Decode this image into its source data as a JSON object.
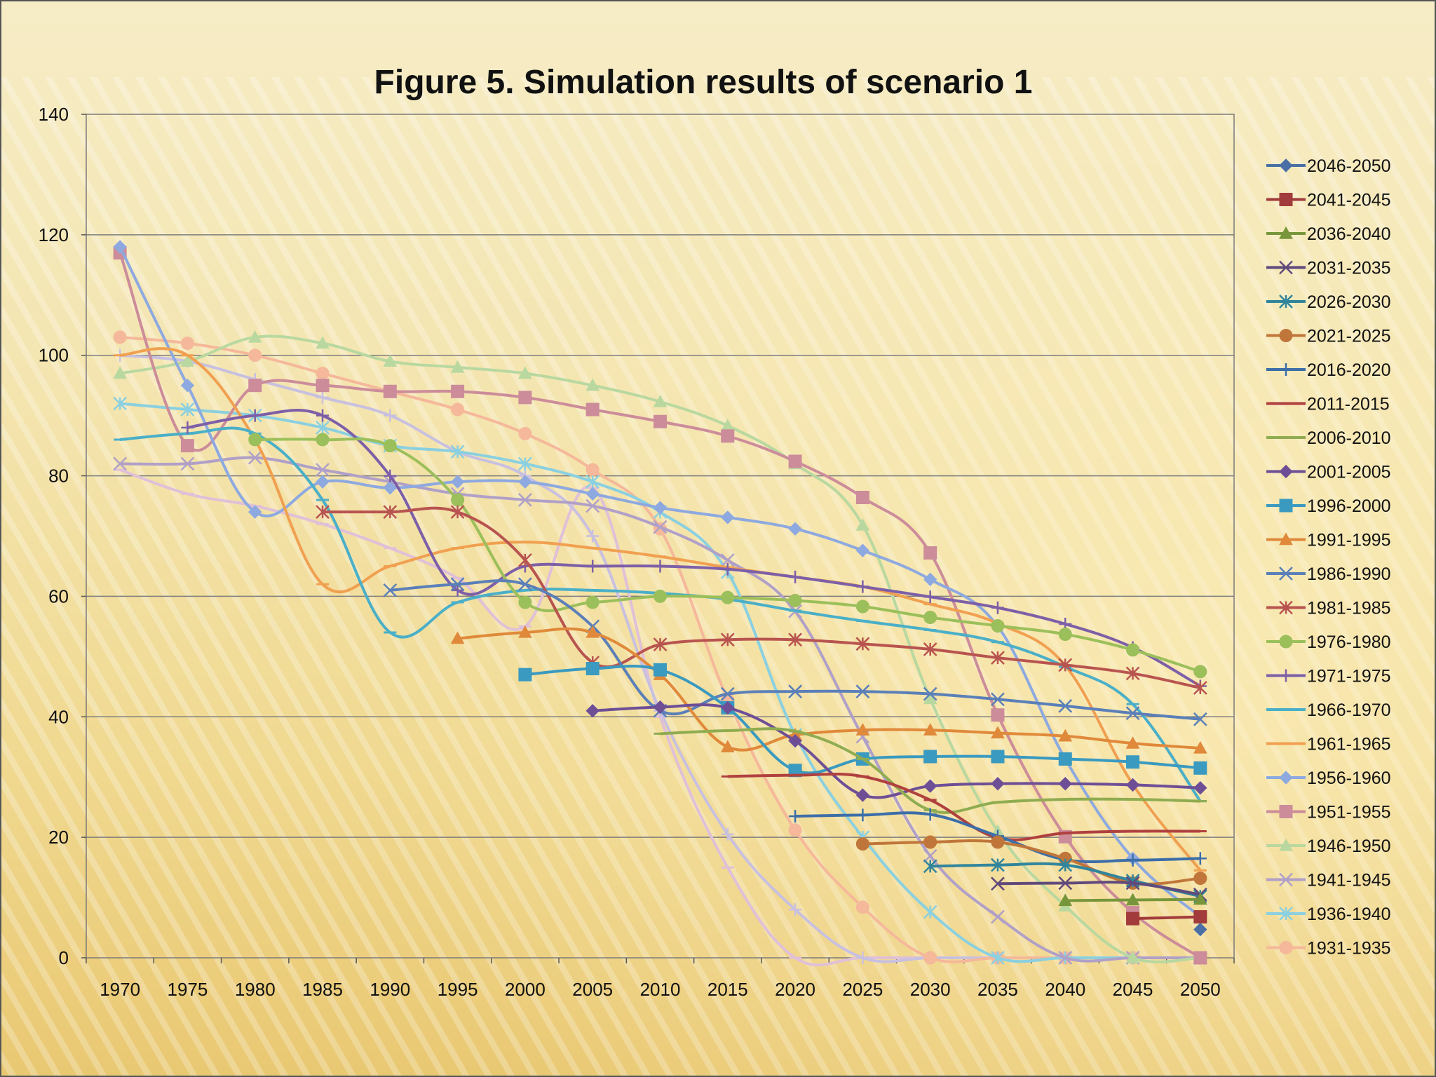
{
  "chart_data": {
    "type": "line",
    "title": "Figure 5. Simulation results of scenario 1",
    "xlabel": "",
    "ylabel": "",
    "ylim": [
      0,
      140
    ],
    "yticks": [
      0,
      20,
      40,
      60,
      80,
      100,
      120,
      140
    ],
    "grid": true,
    "legend_position": "right",
    "categories": [
      "1970",
      "1975",
      "1980",
      "1985",
      "1990",
      "1995",
      "2000",
      "2005",
      "2010",
      "2015",
      "2020",
      "2025",
      "2030",
      "2035",
      "2040",
      "2045",
      "2050"
    ],
    "series": [
      {
        "name": "2046-2050",
        "color": "#4a6fa5",
        "marker": "diamond",
        "values": [
          null,
          null,
          null,
          null,
          null,
          null,
          null,
          null,
          null,
          null,
          null,
          null,
          null,
          null,
          null,
          null,
          4.7
        ]
      },
      {
        "name": "2041-2045",
        "color": "#a23b3b",
        "marker": "square",
        "values": [
          null,
          null,
          null,
          null,
          null,
          null,
          null,
          null,
          null,
          null,
          null,
          null,
          null,
          null,
          null,
          6.5,
          6.8
        ]
      },
      {
        "name": "2036-2040",
        "color": "#77963b",
        "marker": "triangle",
        "values": [
          null,
          null,
          null,
          null,
          null,
          null,
          null,
          null,
          null,
          null,
          null,
          null,
          null,
          null,
          9.5,
          9.6,
          9.7
        ]
      },
      {
        "name": "2031-2035",
        "color": "#604a7b",
        "marker": "x",
        "values": [
          null,
          null,
          null,
          null,
          null,
          null,
          null,
          null,
          null,
          null,
          null,
          null,
          null,
          12.3,
          12.4,
          12.4,
          10.5
        ]
      },
      {
        "name": "2026-2030",
        "color": "#31859c",
        "marker": "star",
        "values": [
          null,
          null,
          null,
          null,
          null,
          null,
          null,
          null,
          null,
          null,
          null,
          null,
          15.2,
          15.4,
          15.4,
          12.8,
          10.2
        ]
      },
      {
        "name": "2021-2025",
        "color": "#c0763a",
        "marker": "circle",
        "values": [
          null,
          null,
          null,
          null,
          null,
          null,
          null,
          null,
          null,
          null,
          null,
          18.9,
          19.2,
          19.2,
          16.5,
          12.4,
          13.2
        ]
      },
      {
        "name": "2016-2020",
        "color": "#3c6ea8",
        "marker": "plus",
        "values": [
          null,
          null,
          null,
          null,
          null,
          null,
          null,
          null,
          null,
          null,
          23.5,
          23.7,
          23.8,
          20.2,
          16.3,
          16.2,
          16.5
        ]
      },
      {
        "name": "2011-2015",
        "color": "#b0403f",
        "marker": "dash",
        "values": [
          null,
          null,
          null,
          null,
          null,
          null,
          null,
          null,
          null,
          30.1,
          30.3,
          30.1,
          26.2,
          19.9,
          20.7,
          21.0,
          21.0
        ]
      },
      {
        "name": "2006-2010",
        "color": "#8fac50",
        "marker": "dash",
        "values": [
          null,
          null,
          null,
          null,
          null,
          null,
          null,
          null,
          37.2,
          37.7,
          37.6,
          33.0,
          24.5,
          25.8,
          26.3,
          26.3,
          26.0
        ]
      },
      {
        "name": "2001-2005",
        "color": "#6e4f96",
        "marker": "diamond",
        "values": [
          null,
          null,
          null,
          null,
          null,
          null,
          null,
          41.0,
          41.6,
          41.5,
          36.0,
          27.0,
          28.5,
          28.9,
          28.9,
          28.7,
          28.2
        ]
      },
      {
        "name": "1996-2000",
        "color": "#3a9ac0",
        "marker": "square",
        "values": [
          null,
          null,
          null,
          null,
          null,
          null,
          47.0,
          48.0,
          47.8,
          41.5,
          31.1,
          33.0,
          33.4,
          33.4,
          33.0,
          32.5,
          31.5
        ]
      },
      {
        "name": "1991-1995",
        "color": "#e0893a",
        "marker": "triangle",
        "values": [
          null,
          null,
          null,
          null,
          null,
          53.0,
          54.0,
          54.0,
          47.0,
          35.0,
          37.0,
          37.8,
          37.8,
          37.3,
          36.8,
          35.6,
          34.8
        ]
      },
      {
        "name": "1986-1990",
        "color": "#5b7fb8",
        "marker": "x",
        "values": [
          null,
          null,
          null,
          null,
          61.0,
          62.0,
          62.0,
          55.0,
          41.0,
          43.8,
          44.2,
          44.2,
          43.8,
          42.9,
          41.8,
          40.6,
          39.6
        ]
      },
      {
        "name": "1981-1985",
        "color": "#b85450",
        "marker": "star",
        "values": [
          null,
          null,
          null,
          74.0,
          74.0,
          74.0,
          66.0,
          49.0,
          52.0,
          52.8,
          52.8,
          52.1,
          51.2,
          49.8,
          48.6,
          47.2,
          44.8
        ]
      },
      {
        "name": "1976-1980",
        "color": "#9bbf5a",
        "marker": "circle",
        "values": [
          null,
          null,
          86.0,
          86.0,
          85.0,
          76.0,
          59.0,
          59.0,
          60.0,
          59.8,
          59.3,
          58.3,
          56.5,
          55.1,
          53.7,
          51.1,
          47.5
        ]
      },
      {
        "name": "1971-1975",
        "color": "#7d5fa8",
        "marker": "plus",
        "values": [
          null,
          88.0,
          90.0,
          90.0,
          80.0,
          61.0,
          65.0,
          65.0,
          65.0,
          64.5,
          63.2,
          61.6,
          59.9,
          58.1,
          55.4,
          51.5,
          45.1
        ]
      },
      {
        "name": "1966-1970",
        "color": "#4aafc8",
        "marker": "dash",
        "values": [
          86.0,
          87.0,
          87.0,
          76.0,
          54.0,
          59.0,
          61.0,
          61.0,
          60.5,
          59.5,
          57.6,
          55.9,
          54.4,
          52.4,
          48.3,
          42.1,
          26.0
        ]
      },
      {
        "name": "1961-1965",
        "color": "#f0a050",
        "marker": "dash",
        "values": [
          100.0,
          100.0,
          86.0,
          62.0,
          65.0,
          68.0,
          69.0,
          68.0,
          66.6,
          64.8,
          63.2,
          61.6,
          58.7,
          55.5,
          48.5,
          28.8,
          14.5
        ]
      },
      {
        "name": "1956-1960",
        "color": "#8da9e0",
        "marker": "diamond",
        "values": [
          118.0,
          95.0,
          74.0,
          79.0,
          78.0,
          79.0,
          79.0,
          77.0,
          74.7,
          73.1,
          71.2,
          67.6,
          62.8,
          55.0,
          33.0,
          16.5,
          6.8
        ]
      },
      {
        "name": "1951-1955",
        "color": "#cc8c9a",
        "marker": "square",
        "values": [
          117.0,
          85.0,
          95.0,
          95.0,
          94.0,
          94.0,
          93.0,
          91.0,
          89.0,
          86.6,
          82.4,
          76.4,
          67.2,
          40.3,
          20.1,
          7.5,
          0.0
        ]
      },
      {
        "name": "1946-1950",
        "color": "#b8d8a0",
        "marker": "triangle",
        "values": [
          97.0,
          99.0,
          103.0,
          102.0,
          99.0,
          98.0,
          97.0,
          95.0,
          92.3,
          88.3,
          82.0,
          71.8,
          43.0,
          21.0,
          8.6,
          0.0,
          0.0
        ]
      },
      {
        "name": "1941-1945",
        "color": "#b0a0c8",
        "marker": "x",
        "values": [
          82.0,
          82.0,
          83.0,
          81.0,
          79.0,
          77.0,
          76.0,
          75.0,
          71.5,
          66.0,
          57.5,
          36.7,
          16.9,
          6.8,
          0.0,
          0.0,
          0.0
        ]
      },
      {
        "name": "1936-1940",
        "color": "#8ad0e0",
        "marker": "star",
        "values": [
          92.0,
          91.0,
          90.0,
          88.0,
          85.0,
          84.0,
          82.0,
          79.0,
          74.0,
          64.0,
          37.0,
          20.0,
          7.6,
          0.0,
          0.0,
          0.0,
          0.0
        ]
      },
      {
        "name": "1931-1935",
        "color": "#f5b89a",
        "marker": "circle",
        "values": [
          103.0,
          102.0,
          100.0,
          97.0,
          94.0,
          91.0,
          87.0,
          81.0,
          71.2,
          42.9,
          21.2,
          8.4,
          0.0,
          0.0,
          0.0,
          0.0,
          0.0
        ]
      },
      {
        "name": "",
        "color": "#c8c0e0",
        "marker": "plus",
        "values": [
          100.0,
          99.0,
          96.0,
          93.0,
          90.0,
          84.0,
          80.0,
          70.0,
          41.0,
          20.5,
          8.0,
          0.0,
          0.0,
          0.0,
          0.0,
          0.0,
          0.0
        ]
      },
      {
        "name": "",
        "color": "#e0c0d8",
        "marker": "dash",
        "values": [
          81.0,
          77.0,
          75.0,
          72.0,
          68.0,
          63.0,
          55.0,
          78.0,
          40.0,
          15.0,
          0.0,
          0.0,
          0.0,
          0.0,
          0.0,
          0.0,
          0.0
        ]
      }
    ]
  }
}
